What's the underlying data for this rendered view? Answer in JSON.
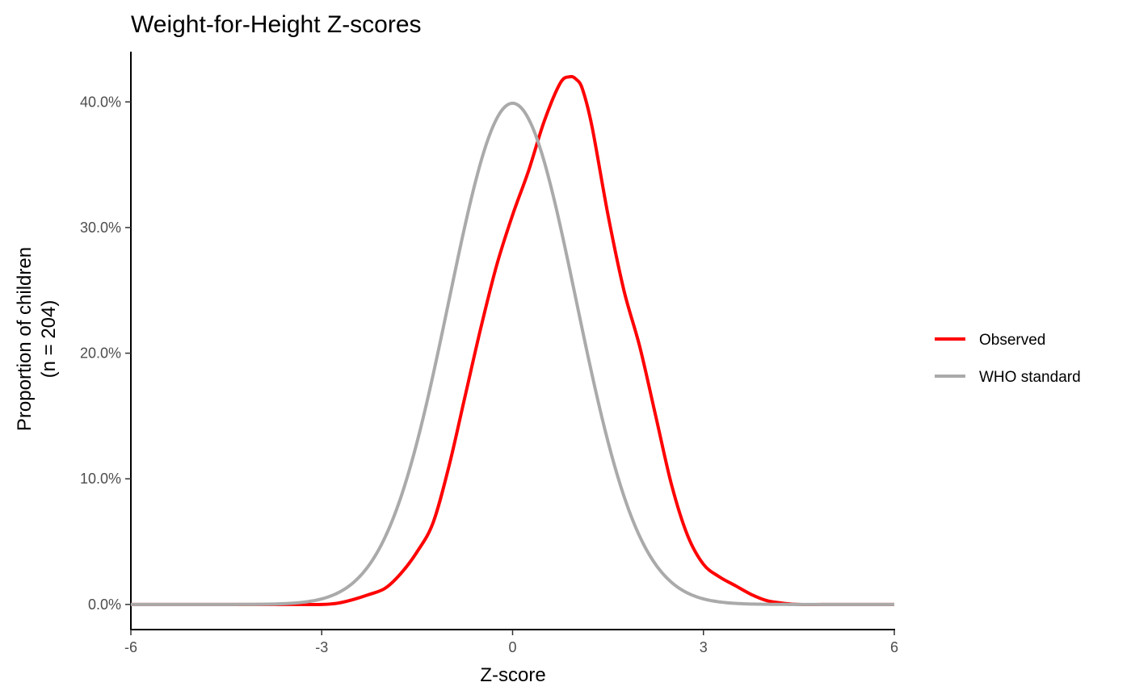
{
  "chart_data": {
    "type": "line",
    "title": "Weight-for-Height Z-scores",
    "xlabel": "Z-score",
    "ylabel_line1": "Proportion of children",
    "ylabel_line2": "(n = 204)",
    "xlim": [
      -6,
      6
    ],
    "ylim": [
      -0.02,
      0.44
    ],
    "x_ticks": [
      -6,
      -3,
      0,
      3,
      6
    ],
    "x_tick_labels": [
      "-6",
      "-3",
      "0",
      "3",
      "6"
    ],
    "y_ticks": [
      0,
      0.1,
      0.2,
      0.3,
      0.4
    ],
    "y_tick_labels": [
      "0.0%",
      "10.0%",
      "20.0%",
      "30.0%",
      "40.0%"
    ],
    "grid": false,
    "legend_position": "right",
    "series": [
      {
        "name": "Observed",
        "color": "#ff0000",
        "points": [
          [
            -6.0,
            0.0
          ],
          [
            -5.0,
            0.0
          ],
          [
            -4.0,
            0.0
          ],
          [
            -3.5,
            0.0
          ],
          [
            -3.0,
            0.0
          ],
          [
            -2.75,
            0.001
          ],
          [
            -2.5,
            0.004
          ],
          [
            -2.25,
            0.008
          ],
          [
            -2.0,
            0.013
          ],
          [
            -1.75,
            0.025
          ],
          [
            -1.5,
            0.042
          ],
          [
            -1.25,
            0.065
          ],
          [
            -1.0,
            0.11
          ],
          [
            -0.75,
            0.165
          ],
          [
            -0.5,
            0.22
          ],
          [
            -0.25,
            0.27
          ],
          [
            0.0,
            0.31
          ],
          [
            0.25,
            0.345
          ],
          [
            0.5,
            0.385
          ],
          [
            0.75,
            0.415
          ],
          [
            0.9,
            0.42
          ],
          [
            1.0,
            0.418
          ],
          [
            1.1,
            0.41
          ],
          [
            1.25,
            0.38
          ],
          [
            1.5,
            0.31
          ],
          [
            1.75,
            0.25
          ],
          [
            2.0,
            0.205
          ],
          [
            2.25,
            0.15
          ],
          [
            2.5,
            0.095
          ],
          [
            2.75,
            0.055
          ],
          [
            3.0,
            0.032
          ],
          [
            3.25,
            0.022
          ],
          [
            3.5,
            0.015
          ],
          [
            3.75,
            0.008
          ],
          [
            4.0,
            0.003
          ],
          [
            4.25,
            0.001
          ],
          [
            4.5,
            0.0
          ],
          [
            5.0,
            0.0
          ],
          [
            6.0,
            0.0
          ]
        ]
      },
      {
        "name": "WHO standard",
        "color": "#aaaaaa",
        "function": "standard-normal-density"
      }
    ]
  }
}
